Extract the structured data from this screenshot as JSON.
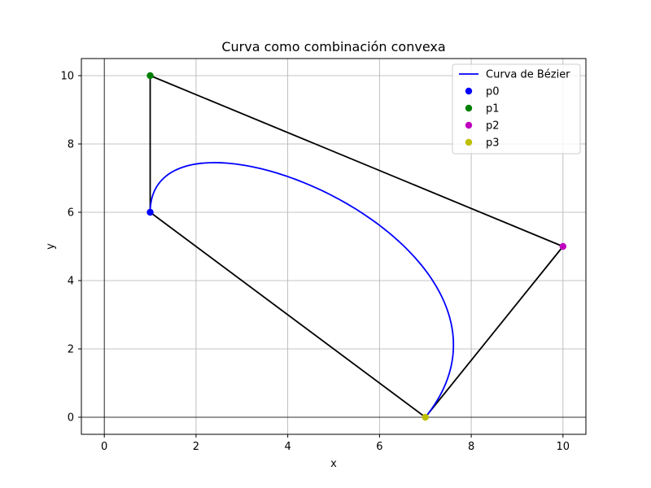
{
  "chart_data": {
    "type": "line",
    "title": "Curva como combinación convexa",
    "xlabel": "x",
    "ylabel": "y",
    "xlim": [
      -0.5,
      10.5
    ],
    "ylim": [
      -0.5,
      10.5
    ],
    "xticks": [
      0,
      2,
      4,
      6,
      8,
      10
    ],
    "yticks": [
      0,
      2,
      4,
      6,
      8,
      10
    ],
    "grid": true,
    "legend_position": "top-right",
    "axis_lines": {
      "x_zero": true,
      "y_zero": true
    },
    "control_polygon": {
      "color": "#000000",
      "points": [
        [
          1,
          6
        ],
        [
          1,
          10
        ],
        [
          10,
          5
        ],
        [
          7,
          0
        ],
        [
          1,
          6
        ]
      ]
    },
    "series": [
      {
        "name": "Curva de Bézier",
        "kind": "bezier-curve",
        "color": "#0000ff",
        "control_points": [
          [
            1,
            6
          ],
          [
            1,
            10
          ],
          [
            10,
            5
          ],
          [
            7,
            0
          ]
        ]
      },
      {
        "name": "p0",
        "kind": "point",
        "color": "#0000ff",
        "x": 1,
        "y": 6
      },
      {
        "name": "p1",
        "kind": "point",
        "color": "#008000",
        "x": 1,
        "y": 10
      },
      {
        "name": "p2",
        "kind": "point",
        "color": "#bf00bf",
        "x": 10,
        "y": 5
      },
      {
        "name": "p3",
        "kind": "point",
        "color": "#bfbf00",
        "x": 7,
        "y": 0
      }
    ]
  }
}
